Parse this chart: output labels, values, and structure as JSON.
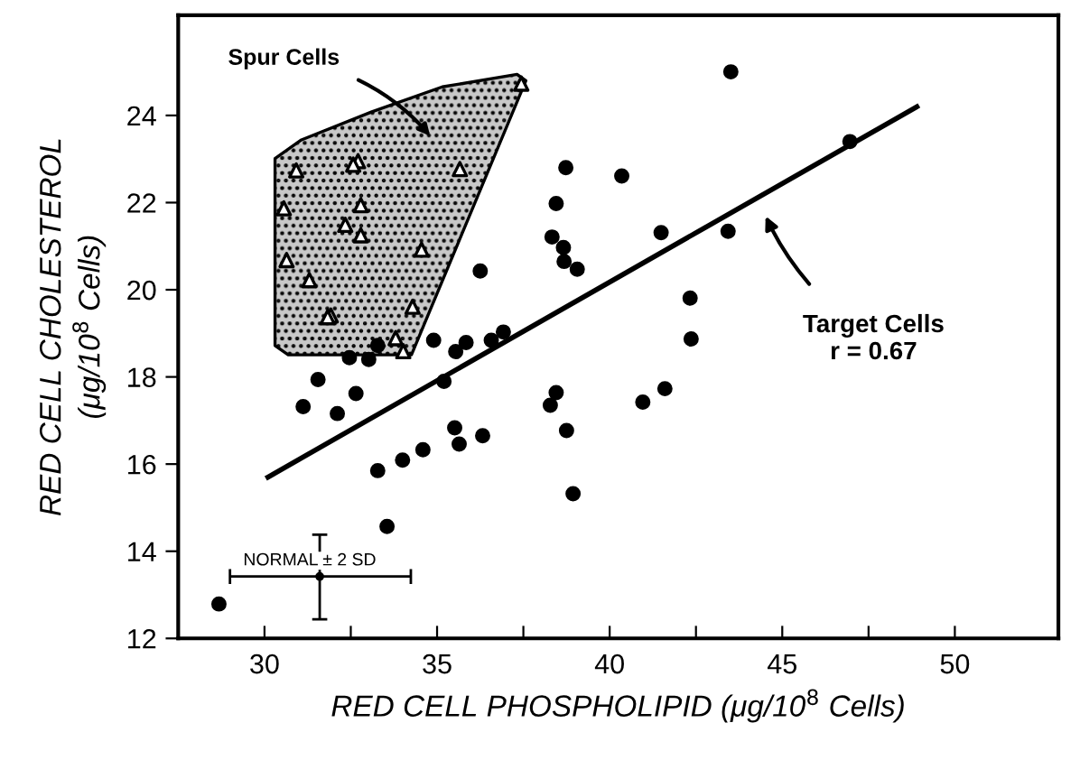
{
  "chart_data": {
    "type": "scatter",
    "xlabel": "RED CELL PHOSPHOLIPID (μg/10$^{8}$ Cells)",
    "ylabel": "RED CELL CHOLESTEROL\n(μg/10$^{8}$ Cells)",
    "xlim": [
      27.5,
      53
    ],
    "ylim": [
      12,
      26.3
    ],
    "xticks": [
      30,
      {
        "value": 32.5,
        "label": null
      },
      35,
      {
        "value": 37.5,
        "label": null
      },
      40,
      {
        "value": 42.5,
        "label": null
      },
      45,
      {
        "value": 47.5,
        "label": null
      },
      50
    ],
    "yticks": [
      12,
      14,
      16,
      18,
      20,
      22,
      24
    ],
    "grid": false,
    "legend": false,
    "series": [
      {
        "marker": "circle",
        "color": "#000000",
        "x": [
          31.12,
          31.55,
          32.11,
          32.65,
          32.46,
          33.02,
          33.28,
          33.28,
          33.55,
          34.0,
          34.59,
          34.9,
          35.2,
          35.54,
          35.84,
          35.51,
          35.64,
          36.32,
          36.25,
          36.57,
          36.92,
          38.45,
          38.33,
          38.66,
          38.68,
          39.06,
          38.45,
          38.28,
          38.75,
          38.94,
          40.35,
          41.49,
          40.96,
          41.6,
          42.33,
          42.36,
          38.73,
          43.43,
          46.96,
          43.51,
          28.68
        ],
        "values": [
          17.32,
          17.94,
          17.16,
          17.62,
          18.44,
          18.4,
          18.72,
          15.85,
          14.57,
          16.09,
          16.33,
          18.84,
          17.9,
          18.58,
          18.79,
          16.83,
          16.46,
          16.65,
          20.43,
          18.84,
          19.03,
          21.98,
          21.21,
          20.97,
          20.65,
          20.47,
          17.64,
          17.35,
          16.77,
          15.32,
          22.61,
          21.31,
          17.42,
          17.73,
          19.81,
          18.87,
          22.8,
          21.34,
          23.4,
          25.0,
          12.79
        ]
      },
      {
        "marker": "triangle",
        "color": "#000000",
        "x": [
          30.92,
          32.71,
          32.57,
          35.66,
          37.44,
          30.56,
          32.79,
          32.34,
          32.79,
          34.55,
          30.64,
          31.3,
          31.92,
          31.83,
          34.29,
          33.8,
          34.02
        ],
        "values": [
          22.74,
          22.95,
          22.87,
          22.77,
          24.73,
          21.87,
          21.94,
          21.49,
          21.25,
          20.92,
          20.68,
          20.22,
          19.41,
          19.37,
          19.61,
          18.89,
          18.59
        ]
      },
      {
        "type": "line",
        "marker": "none",
        "line_style": "solid",
        "color": "#000000",
        "x": [
          30.1,
          48.9
        ],
        "values": [
          15.7,
          24.2
        ]
      },
      {
        "marker": "none",
        "color": "#000000",
        "x": [
          31.6
        ],
        "values": [
          13.42
        ],
        "errors": [
          [
            12.44,
            14.38
          ]
        ],
        "xerrors": [
          [
            29.0,
            34.24
          ]
        ]
      }
    ],
    "annotations": [
      "Spur Cells",
      "Target Cells\nr = 0.67",
      {
        "text": "NORMAL ± 2 SD",
        "x": 31.6,
        "y": 13.42
      }
    ]
  }
}
